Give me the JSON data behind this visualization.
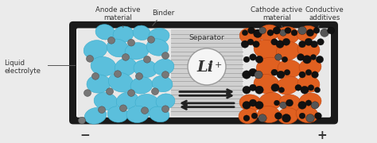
{
  "bg_color": "#ebebeb",
  "battery_bg": "#f0f0f0",
  "battery_border": "#1a1a1a",
  "anode_color": "#5bbfdc",
  "anode_bg": "#e8e8e8",
  "cathode_color": "#e06020",
  "cathode_bg": "#e8e8e8",
  "binder_color": "#777777",
  "separator_bg": "#d0d0d0",
  "separator_line_color": "#aaaaaa",
  "li_circle_color": "#f5f5f5",
  "li_circle_border": "#999999",
  "arrow_color": "#222222",
  "minus_sign": "−",
  "plus_sign": "+",
  "label_liquid": "Liquid\nelectrolyte",
  "label_anode": "Anode active\nmaterial",
  "label_binder": "Binder",
  "label_cathode": "Cathode active\nmaterial",
  "label_conductive": "Conductive\nadditives",
  "label_separator": "Separator",
  "label_li": "Li",
  "label_li_super": "+",
  "text_color": "#333333",
  "font_size_label": 6.2,
  "font_size_sign": 11
}
